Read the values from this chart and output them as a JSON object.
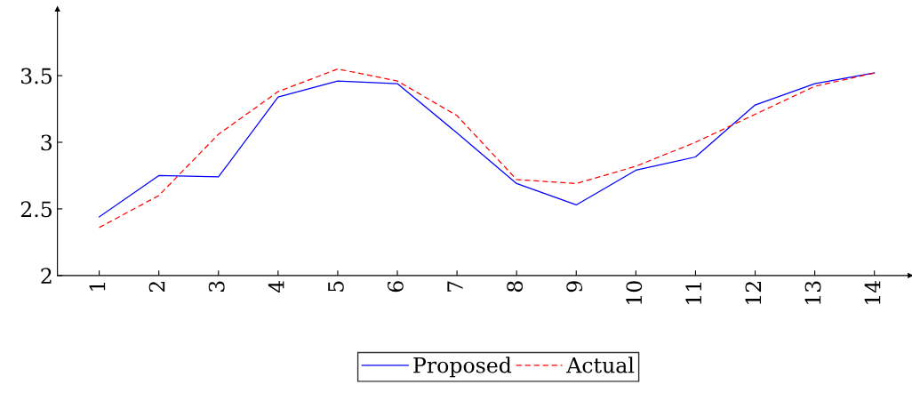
{
  "chart_data": {
    "type": "line",
    "x": [
      1,
      2,
      3,
      4,
      5,
      6,
      7,
      8,
      9,
      10,
      11,
      12,
      13,
      14
    ],
    "series": [
      {
        "name": "Proposed",
        "color": "#0000ff",
        "line_style": "solid",
        "values": [
          2.44,
          2.75,
          2.74,
          3.34,
          3.46,
          3.44,
          3.07,
          2.69,
          2.53,
          2.79,
          2.89,
          3.28,
          3.44,
          3.52
        ]
      },
      {
        "name": "Actual",
        "color": "#ff0000",
        "line_style": "dashed",
        "values": [
          2.36,
          2.6,
          3.06,
          3.38,
          3.55,
          3.46,
          3.2,
          2.72,
          2.69,
          2.82,
          3.0,
          3.21,
          3.42,
          3.52
        ]
      }
    ],
    "xlim": [
      0.3,
      14.6
    ],
    "ylim": [
      2,
      4
    ],
    "xticks": [
      1,
      2,
      3,
      4,
      5,
      6,
      7,
      8,
      9,
      10,
      11,
      12,
      13,
      14
    ],
    "yticks": [
      2,
      2.5,
      3,
      3.5
    ],
    "grid": false,
    "legend": "bottom",
    "marker": "none"
  }
}
